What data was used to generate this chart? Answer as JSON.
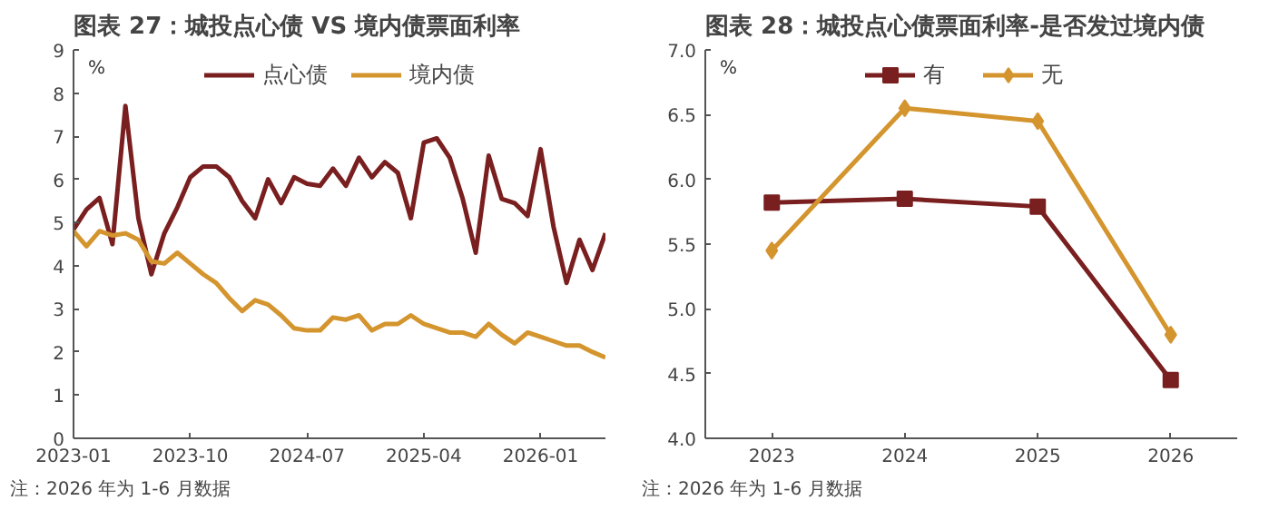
{
  "chart_data": [
    {
      "type": "line",
      "title": "图表 27：城投点心债 VS 境内债票面利率",
      "ylabel": "%",
      "x": [
        "2023-01",
        "2023-02",
        "2023-03",
        "2023-04",
        "2023-05",
        "2023-06",
        "2023-07",
        "2023-08",
        "2023-09",
        "2023-10",
        "2023-11",
        "2023-12",
        "2024-01",
        "2024-02",
        "2024-03",
        "2024-04",
        "2024-05",
        "2024-06",
        "2024-07",
        "2024-08",
        "2024-09",
        "2024-10",
        "2024-11",
        "2024-12",
        "2025-01",
        "2025-02",
        "2025-03",
        "2025-04",
        "2025-05",
        "2025-06",
        "2025-07",
        "2025-08",
        "2025-09",
        "2025-10",
        "2025-11",
        "2025-12",
        "2026-01",
        "2026-02",
        "2026-03",
        "2026-04",
        "2026-05",
        "2026-06"
      ],
      "series": [
        {
          "name": "点心债",
          "color": "#7a1f1f",
          "values": [
            4.84,
            5.3,
            5.57,
            4.5,
            7.7,
            5.1,
            3.8,
            4.75,
            5.35,
            6.05,
            6.3,
            6.3,
            6.05,
            5.5,
            5.1,
            6.0,
            5.45,
            6.05,
            5.9,
            5.85,
            6.25,
            5.85,
            6.5,
            6.05,
            6.4,
            6.15,
            5.1,
            6.85,
            6.95,
            6.5,
            5.55,
            4.3,
            6.55,
            5.55,
            5.45,
            5.15,
            6.7,
            4.9,
            3.6,
            4.6,
            3.9,
            4.75
          ]
        },
        {
          "name": "境内债",
          "color": "#d4952e",
          "values": [
            4.8,
            4.45,
            4.8,
            4.7,
            4.75,
            4.6,
            4.1,
            4.05,
            4.3,
            4.05,
            3.8,
            3.6,
            3.25,
            2.95,
            3.2,
            3.1,
            2.85,
            2.55,
            2.5,
            2.5,
            2.8,
            2.75,
            2.85,
            2.5,
            2.65,
            2.65,
            2.85,
            2.65,
            2.55,
            2.45,
            2.45,
            2.35,
            2.65,
            2.4,
            2.2,
            2.45,
            2.35,
            2.25,
            2.15,
            2.15,
            2.0,
            1.87
          ]
        }
      ],
      "xlim": [
        "2023-01",
        "2026-06"
      ],
      "xticks": [
        "2023-01",
        "2023-10",
        "2024-07",
        "2025-04",
        "2026-01"
      ],
      "ylim": [
        0,
        9
      ],
      "yticks": [
        0,
        1,
        2,
        3,
        4,
        5,
        6,
        7,
        8,
        9
      ],
      "legend": "top",
      "grid": false,
      "marker": "none",
      "line_style": "solid",
      "annotations": [
        "注：2026 年为 1-6 月数据"
      ]
    },
    {
      "type": "line",
      "title": "图表 28：城投点心债票面利率-是否发过境内债",
      "ylabel": "%",
      "categories": [
        "2023",
        "2024",
        "2025",
        "2026"
      ],
      "series": [
        {
          "name": "有",
          "color": "#7a1f1f",
          "marker": "square",
          "values": [
            5.82,
            5.85,
            5.79,
            4.45
          ]
        },
        {
          "name": "无",
          "color": "#d4952e",
          "marker": "diamond",
          "values": [
            5.45,
            6.55,
            6.45,
            4.8
          ]
        }
      ],
      "ylim": [
        4,
        7
      ],
      "yticks": [
        {
          "value": 4,
          "label": "4.0"
        },
        {
          "value": 4.5,
          "label": "4.5"
        },
        {
          "value": 5,
          "label": "5.0"
        },
        {
          "value": 5.5,
          "label": "5.5"
        },
        {
          "value": 6,
          "label": "6.0"
        },
        {
          "value": 6.5,
          "label": "6.5"
        },
        {
          "value": 7,
          "label": "7.0"
        }
      ],
      "legend": "top",
      "grid": false,
      "line_style": "solid",
      "annotations": [
        "注：2026 年为 1-6 月数据"
      ]
    }
  ]
}
